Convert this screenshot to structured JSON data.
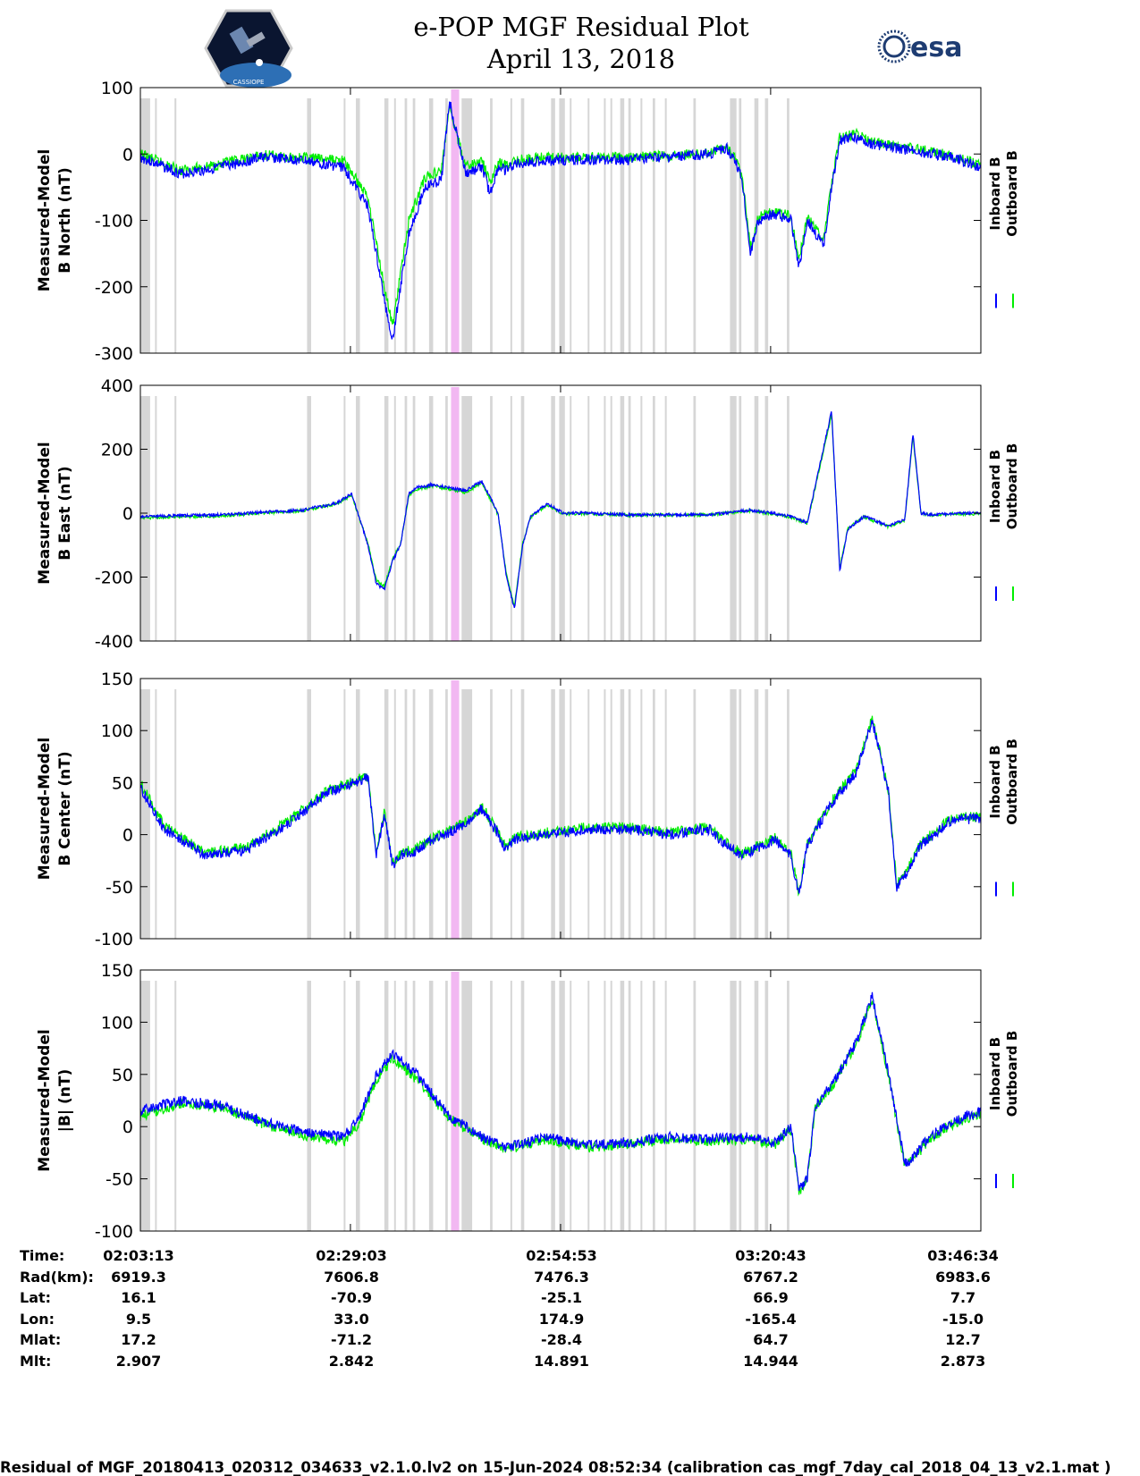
{
  "header": {
    "title_line1": "e-POP MGF Residual Plot",
    "title_line2": "April 13, 2018",
    "left_logo_text": "CASSIOPE",
    "right_logo_text": "esa"
  },
  "colors": {
    "inboard": "#0000ff",
    "outboard": "#00ee00",
    "gap_band": "#d6d6d6",
    "highlight_band": "#f2b8f2"
  },
  "legend": {
    "inboard": "Inboard B",
    "outboard": "Outboard B"
  },
  "time_axis": {
    "ticks": [
      "02:03:13",
      "02:29:03",
      "02:54:53",
      "03:20:43",
      "03:46:34"
    ]
  },
  "ephemeris": {
    "rows": [
      {
        "label": "Time:",
        "values": [
          "02:03:13",
          "02:29:03",
          "02:54:53",
          "03:20:43",
          "03:46:34"
        ]
      },
      {
        "label": "Rad(km):",
        "values": [
          "6919.3",
          "7606.8",
          "7476.3",
          "6767.2",
          "6983.6"
        ]
      },
      {
        "label": "Lat:",
        "values": [
          "16.1",
          "-70.9",
          "-25.1",
          "66.9",
          "7.7"
        ]
      },
      {
        "label": "Lon:",
        "values": [
          "9.5",
          "33.0",
          "174.9",
          "-165.4",
          "-15.0"
        ]
      },
      {
        "label": "Mlat:",
        "values": [
          "17.2",
          "-71.2",
          "-28.4",
          "64.7",
          "12.7"
        ]
      },
      {
        "label": "Mlt:",
        "values": [
          "2.907",
          "2.842",
          "14.891",
          "14.944",
          "2.873"
        ]
      }
    ]
  },
  "footer": {
    "text": "Residual of MGF_20180413_020312_034633_v2.1.0.lv2 on 15-Jun-2024 08:52:34 (calibration cas_mgf_7day_cal_2018_04_13_v2.1.mat )"
  },
  "chart_data": [
    {
      "type": "line",
      "ylabel_line1": "Measured-Model",
      "ylabel_line2": "B North (nT)",
      "ylim": [
        -300,
        100
      ],
      "yticks": [
        -300,
        -200,
        -100,
        0,
        100
      ],
      "grid": false,
      "legend_position": "right",
      "x_minutes": [
        0,
        5,
        10,
        15,
        20,
        25,
        28,
        30,
        31,
        32,
        33,
        35,
        37,
        38,
        40,
        42,
        43,
        44,
        45,
        46,
        50,
        55,
        60,
        65,
        70,
        72,
        73,
        74,
        75,
        76,
        78,
        80,
        81,
        82,
        84,
        85,
        86,
        88,
        90,
        95,
        100,
        103.35
      ],
      "series": [
        {
          "name": "Inboard B",
          "values": [
            -5,
            -30,
            -20,
            -5,
            -10,
            -20,
            -80,
            -220,
            -280,
            -200,
            -120,
            -50,
            -40,
            80,
            -30,
            -20,
            -60,
            -20,
            -25,
            -15,
            -10,
            -8,
            -8,
            -5,
            0,
            10,
            -5,
            -40,
            -150,
            -100,
            -90,
            -100,
            -170,
            -100,
            -140,
            -50,
            20,
            25,
            15,
            5,
            -5,
            -20
          ]
        },
        {
          "name": "Outboard B",
          "values": [
            0,
            -25,
            -15,
            -2,
            -5,
            -10,
            -65,
            -200,
            -260,
            -180,
            -100,
            -35,
            -25,
            70,
            -20,
            -10,
            -45,
            -12,
            -18,
            -10,
            -5,
            -5,
            -5,
            -3,
            2,
            12,
            -3,
            -35,
            -140,
            -95,
            -85,
            -95,
            -160,
            -95,
            -130,
            -45,
            25,
            30,
            18,
            8,
            -2,
            -18
          ]
        }
      ]
    },
    {
      "type": "line",
      "ylabel_line1": "Measured-Model",
      "ylabel_line2": "B East (nT)",
      "ylim": [
        -400,
        400
      ],
      "yticks": [
        -400,
        -200,
        0,
        200,
        400
      ],
      "grid": false,
      "legend_position": "right",
      "x_minutes": [
        0,
        10,
        20,
        24,
        26,
        28,
        29,
        30,
        31,
        32,
        33,
        34,
        36,
        40,
        42,
        44,
        45,
        46,
        47,
        48,
        50,
        52,
        55,
        60,
        70,
        75,
        80,
        82,
        85,
        86,
        87,
        88,
        89,
        90,
        92,
        94,
        95,
        96,
        97,
        98,
        100,
        103.35
      ],
      "series": [
        {
          "name": "Inboard B",
          "values": [
            -10,
            -5,
            10,
            30,
            60,
            -100,
            -220,
            -240,
            -150,
            -100,
            60,
            80,
            90,
            70,
            100,
            0,
            -200,
            -300,
            -100,
            -10,
            30,
            0,
            0,
            -5,
            -5,
            10,
            -10,
            -30,
            320,
            -180,
            -50,
            -30,
            -10,
            -20,
            -40,
            -20,
            250,
            0,
            -5,
            -5,
            0,
            0
          ]
        },
        {
          "name": "Outboard B",
          "values": [
            -15,
            -8,
            8,
            28,
            55,
            -95,
            -210,
            -230,
            -145,
            -95,
            55,
            75,
            85,
            65,
            95,
            -5,
            -190,
            -290,
            -95,
            -12,
            25,
            -2,
            -2,
            -6,
            -6,
            8,
            -12,
            -32,
            310,
            -170,
            -48,
            -28,
            -12,
            -22,
            -42,
            -22,
            240,
            -2,
            -6,
            -6,
            -2,
            -2
          ]
        }
      ]
    },
    {
      "type": "line",
      "ylabel_line1": "Measured-Model",
      "ylabel_line2": "B Center (nT)",
      "ylim": [
        -100,
        150
      ],
      "yticks": [
        -100,
        -50,
        0,
        50,
        100,
        150
      ],
      "grid": false,
      "legend_position": "right",
      "x_minutes": [
        0,
        3,
        8,
        13,
        18,
        23,
        28,
        29,
        30,
        31,
        32,
        34,
        36,
        40,
        42,
        44,
        45,
        46,
        50,
        55,
        60,
        65,
        70,
        72,
        74,
        78,
        80,
        81,
        82,
        85,
        88,
        90,
        92,
        93,
        94,
        96,
        100,
        103.35
      ],
      "series": [
        {
          "name": "Inboard B",
          "values": [
            45,
            5,
            -20,
            -15,
            10,
            40,
            55,
            -20,
            20,
            -30,
            -20,
            -15,
            -5,
            10,
            25,
            0,
            -15,
            -5,
            0,
            5,
            5,
            0,
            5,
            -10,
            -20,
            -5,
            -20,
            -60,
            -10,
            30,
            60,
            110,
            40,
            -50,
            -40,
            -10,
            15,
            15
          ]
        },
        {
          "name": "Outboard B",
          "values": [
            50,
            8,
            -18,
            -12,
            12,
            42,
            57,
            -18,
            22,
            -28,
            -18,
            -13,
            -3,
            12,
            27,
            2,
            -13,
            -3,
            2,
            7,
            7,
            2,
            7,
            -8,
            -18,
            -3,
            -18,
            -58,
            -8,
            32,
            62,
            112,
            42,
            -48,
            -38,
            -8,
            17,
            17
          ]
        }
      ]
    },
    {
      "type": "line",
      "ylabel_line1": "Measured-Model",
      "ylabel_line2": "|B| (nT)",
      "ylim": [
        -100,
        150
      ],
      "yticks": [
        -100,
        -50,
        0,
        50,
        100,
        150
      ],
      "grid": false,
      "legend_position": "right",
      "x_minutes": [
        0,
        5,
        10,
        15,
        20,
        25,
        27,
        29,
        31,
        34,
        38,
        42,
        45,
        50,
        55,
        60,
        65,
        70,
        75,
        78,
        80,
        81,
        82,
        83,
        85,
        88,
        90,
        92,
        94,
        95,
        97,
        100,
        103.35
      ],
      "series": [
        {
          "name": "Inboard B",
          "values": [
            15,
            25,
            20,
            5,
            -5,
            -10,
            10,
            50,
            70,
            50,
            10,
            -10,
            -20,
            -10,
            -18,
            -15,
            -10,
            -12,
            -10,
            -15,
            0,
            -60,
            -50,
            20,
            40,
            80,
            125,
            50,
            -35,
            -30,
            -10,
            5,
            15
          ]
        },
        {
          "name": "Outboard B",
          "values": [
            10,
            22,
            18,
            3,
            -8,
            -15,
            5,
            45,
            65,
            45,
            8,
            -12,
            -22,
            -12,
            -20,
            -17,
            -12,
            -14,
            -12,
            -17,
            -2,
            -62,
            -52,
            18,
            38,
            78,
            122,
            48,
            -37,
            -32,
            -12,
            3,
            13
          ]
        }
      ]
    }
  ]
}
